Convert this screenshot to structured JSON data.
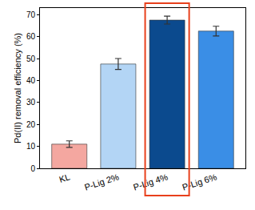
{
  "chart_data": {
    "type": "bar",
    "y_label": "Pd(II) removal efficiency (%)",
    "categories": [
      "KL",
      "P-Lig 2%",
      "P-Lig 4%",
      "P-Lig 6%"
    ],
    "values": [
      11,
      47.5,
      67.5,
      62.5
    ],
    "error": [
      1.5,
      2.5,
      1.8,
      2.2
    ],
    "colors": [
      "#f4a7a0",
      "#b3d5f5",
      "#0b4a8e",
      "#3a8ee6"
    ],
    "ylim": [
      0,
      73
    ],
    "yticks": [
      0,
      10,
      20,
      30,
      40,
      50,
      60,
      70
    ],
    "grid": false
  }
}
